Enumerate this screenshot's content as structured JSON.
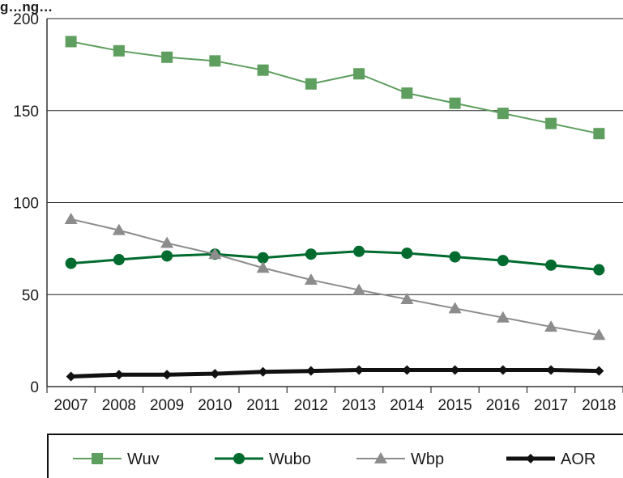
{
  "chart_data": {
    "type": "line",
    "title": "g…ng…",
    "xlabel": "",
    "ylabel": "",
    "categories": [
      "2007",
      "2008",
      "2009",
      "2010",
      "2011",
      "2012",
      "2013",
      "2014",
      "2015",
      "2016",
      "2017",
      "2018"
    ],
    "ylim": [
      0,
      200
    ],
    "yticks": [
      0,
      50,
      100,
      150,
      200
    ],
    "grid": true,
    "legend_position": "bottom",
    "series": [
      {
        "name": "Wuv",
        "color": "#5e9e5e",
        "marker": "square",
        "values": [
          187.5,
          182.5,
          179,
          177,
          172,
          164.5,
          170,
          159.5,
          154,
          148.5,
          143,
          137.5
        ]
      },
      {
        "name": "Wubo",
        "color": "#006b2e",
        "marker": "circle",
        "values": [
          67,
          69,
          71,
          72,
          70,
          72,
          73.5,
          72.5,
          70.5,
          68.5,
          66,
          63.5
        ]
      },
      {
        "name": "Wbp",
        "color": "#8c8c8c",
        "marker": "triangle",
        "values": [
          91,
          85,
          78,
          72,
          64.5,
          58,
          52.5,
          47.5,
          42.5,
          37.5,
          32.5,
          28
        ]
      },
      {
        "name": "AOR",
        "color": "#111111",
        "marker": "diamond",
        "values": [
          5.5,
          6.5,
          6.5,
          7,
          8,
          8.5,
          9,
          9,
          9,
          9,
          9,
          8.5
        ]
      }
    ]
  }
}
